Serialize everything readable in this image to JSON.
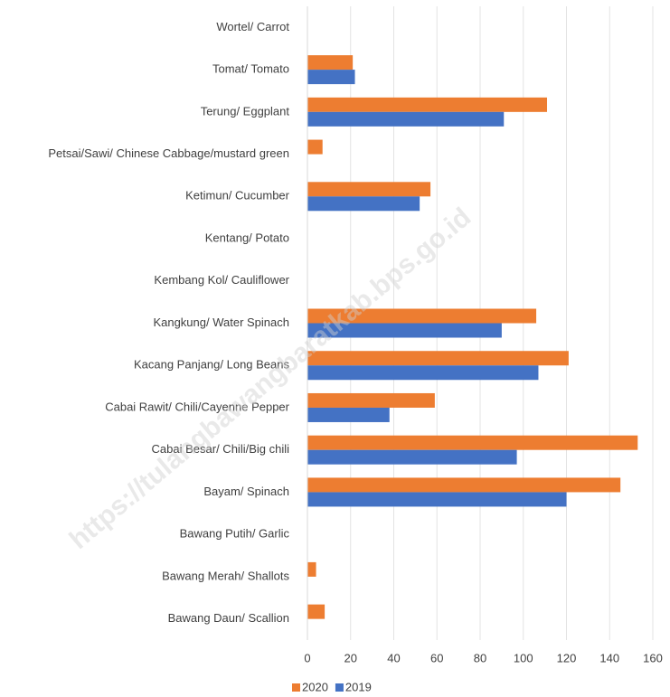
{
  "chart_data": {
    "type": "hbar",
    "categories": [
      "Wortel/ Carrot",
      "Tomat/ Tomato",
      "Terung/ Eggplant",
      "Petsai/Sawi/ Chinese Cabbage/mustard green",
      "Ketimun/ Cucumber",
      "Kentang/ Potato",
      "Kembang Kol/ Cauliflower",
      "Kangkung/ Water Spinach",
      "Kacang Panjang/ Long Beans",
      "Cabai Rawit/ Chili/Cayenne Pepper",
      "Cabai Besar/ Chili/Big chili",
      "Bayam/ Spinach",
      "Bawang Putih/ Garlic",
      "Bawang Merah/ Shallots",
      "Bawang Daun/ Scallion"
    ],
    "series": [
      {
        "name": "2020",
        "color": "#ED7D31",
        "values": [
          0,
          21,
          111,
          7,
          57,
          0,
          0,
          106,
          121,
          59,
          153,
          145,
          0,
          4,
          8
        ]
      },
      {
        "name": "2019",
        "color": "#4472C4",
        "values": [
          0,
          22,
          91,
          0,
          52,
          0,
          0,
          90,
          107,
          38,
          97,
          120,
          0,
          0,
          0
        ]
      }
    ],
    "xlim": [
      0,
      160
    ],
    "xticks": [
      0,
      20,
      40,
      60,
      80,
      100,
      120,
      140,
      160
    ],
    "grid": true,
    "legend": "bottom",
    "watermark": "https://tulangbawangbaratkab.bps.go.id"
  }
}
